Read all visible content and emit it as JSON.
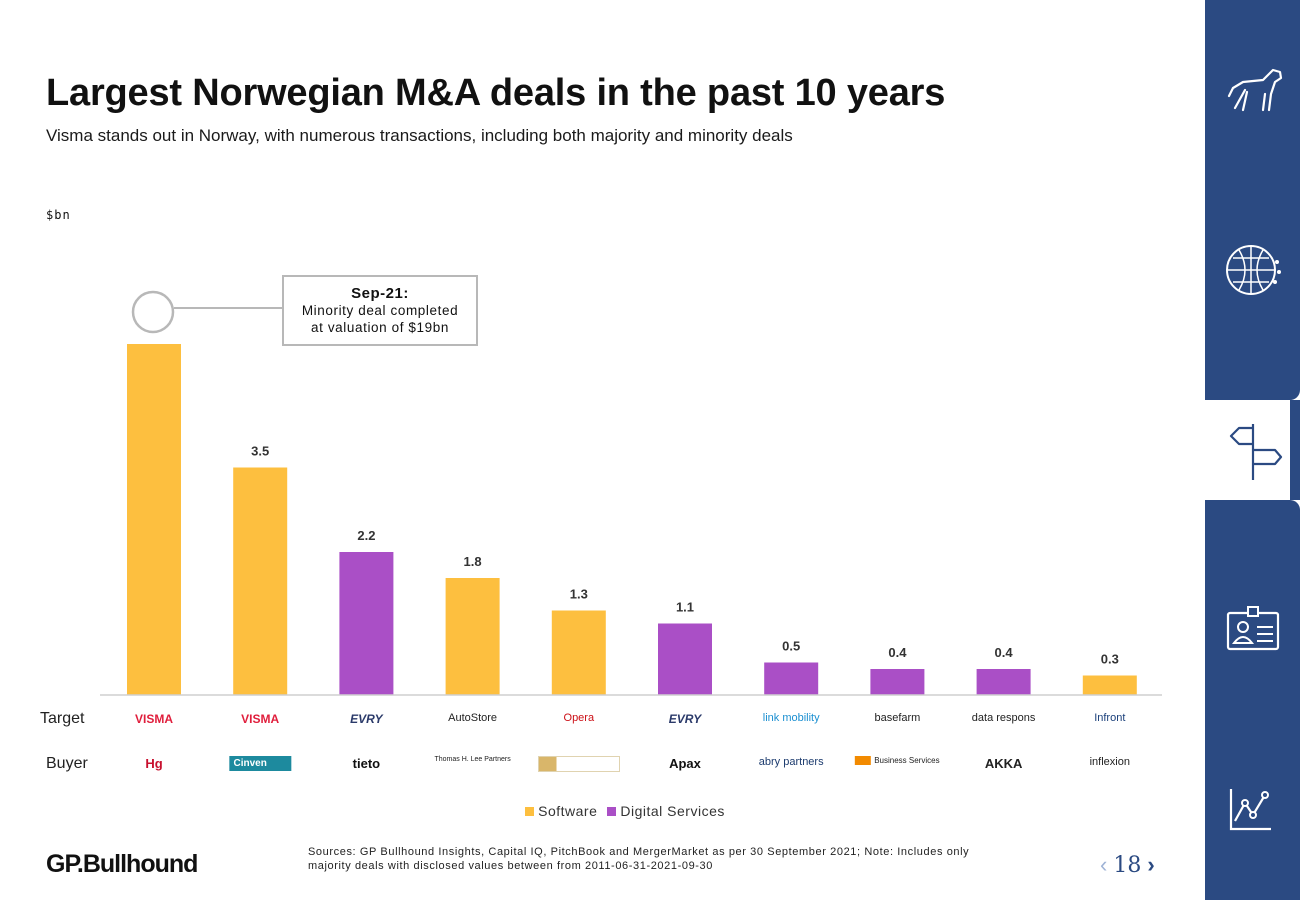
{
  "header": {
    "title": "Largest Norwegian M&A deals in the past 10 years",
    "subtitle": "Visma stands out in Norway, with numerous transactions, including both majority and minority deals"
  },
  "chart_data": {
    "type": "bar",
    "unit_label": "$bn",
    "ylim": [
      0,
      5.4
    ],
    "grid": false,
    "colors": {
      "Software": "#fdbf3f",
      "Digital Services": "#aa4fc6"
    },
    "categories": [
      "Visma",
      "Visma",
      "Evry",
      "AutoStore",
      "Opera",
      "Evry",
      "link mobility",
      "basefarm",
      "data respons",
      "Infront"
    ],
    "bars": [
      {
        "target": "VISMA",
        "buyer": "Hg",
        "value": 5.4,
        "sector": "Software"
      },
      {
        "target": "VISMA",
        "buyer": "Cinven",
        "value": 3.5,
        "sector": "Software"
      },
      {
        "target": "EVRY",
        "buyer": "tieto",
        "value": 2.2,
        "sector": "Digital Services"
      },
      {
        "target": "AutoStore",
        "buyer": "Thomas H. Lee Partners",
        "value": 1.8,
        "sector": "Software"
      },
      {
        "target": "Opera",
        "buyer": "",
        "value": 1.3,
        "sector": "Software"
      },
      {
        "target": "EVRY",
        "buyer": "Apax",
        "value": 1.1,
        "sector": "Digital Services"
      },
      {
        "target": "link mobility",
        "buyer": "abry partners",
        "value": 0.5,
        "sector": "Digital Services"
      },
      {
        "target": "basefarm",
        "buyer": "Business Services",
        "value": 0.4,
        "sector": "Digital Services"
      },
      {
        "target": "data respons",
        "buyer": "AKKA",
        "value": 0.4,
        "sector": "Digital Services"
      },
      {
        "target": "Infront",
        "buyer": "inflexion",
        "value": 0.3,
        "sector": "Software"
      }
    ],
    "legend": [
      "Software",
      "Digital Services"
    ],
    "legend_position": "bottom-center",
    "annotation": {
      "title": "Sep-21",
      "body_line1": "Minority deal completed",
      "body_line2": "at valuation of $19bn"
    }
  },
  "rows": {
    "target_label": "Target",
    "buyer_label": "Buyer"
  },
  "footer": {
    "brand": "GP.Bullhound",
    "sources_line1": "Sources: GP Bullhound Insights, Capital IQ, PitchBook and MergerMarket as per 30 September 2021; Note: Includes only",
    "sources_line2": "majority deals with disclosed values between from 2011-06-31-2021-09-30",
    "page_number": "18"
  },
  "sidebar": {
    "items": [
      {
        "icon": "dog-icon"
      },
      {
        "icon": "digital-globe-icon"
      },
      {
        "icon": "signpost-icon",
        "active": true
      },
      {
        "icon": "id-badge-icon"
      },
      {
        "icon": "line-chart-icon"
      }
    ]
  },
  "accent": "#2b4a82"
}
